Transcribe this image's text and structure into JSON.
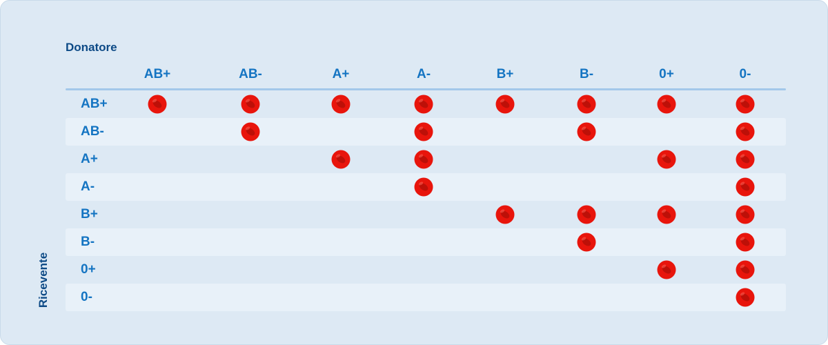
{
  "title_donor": "Donatore",
  "title_recipient": "Ricevente",
  "donors": [
    "AB+",
    "AB-",
    "A+",
    "A-",
    "B+",
    "B-",
    "0+",
    "0-"
  ],
  "recipients": [
    "AB+",
    "AB-",
    "A+",
    "A-",
    "B+",
    "B-",
    "0+",
    "0-"
  ],
  "compatibility": [
    [
      1,
      1,
      1,
      1,
      1,
      1,
      1,
      1
    ],
    [
      0,
      1,
      0,
      1,
      0,
      1,
      0,
      1
    ],
    [
      0,
      0,
      1,
      1,
      0,
      0,
      1,
      1
    ],
    [
      0,
      0,
      0,
      1,
      0,
      0,
      0,
      1
    ],
    [
      0,
      0,
      0,
      0,
      1,
      1,
      1,
      1
    ],
    [
      0,
      0,
      0,
      0,
      0,
      1,
      0,
      1
    ],
    [
      0,
      0,
      0,
      0,
      0,
      0,
      1,
      1
    ],
    [
      0,
      0,
      0,
      0,
      0,
      0,
      0,
      1
    ]
  ],
  "icon": "red-blood-cell-icon",
  "colors": {
    "cell": "#e8150c",
    "cell_inner": "#b50f08",
    "heading": "#1474c2",
    "title": "#0d4a86"
  }
}
